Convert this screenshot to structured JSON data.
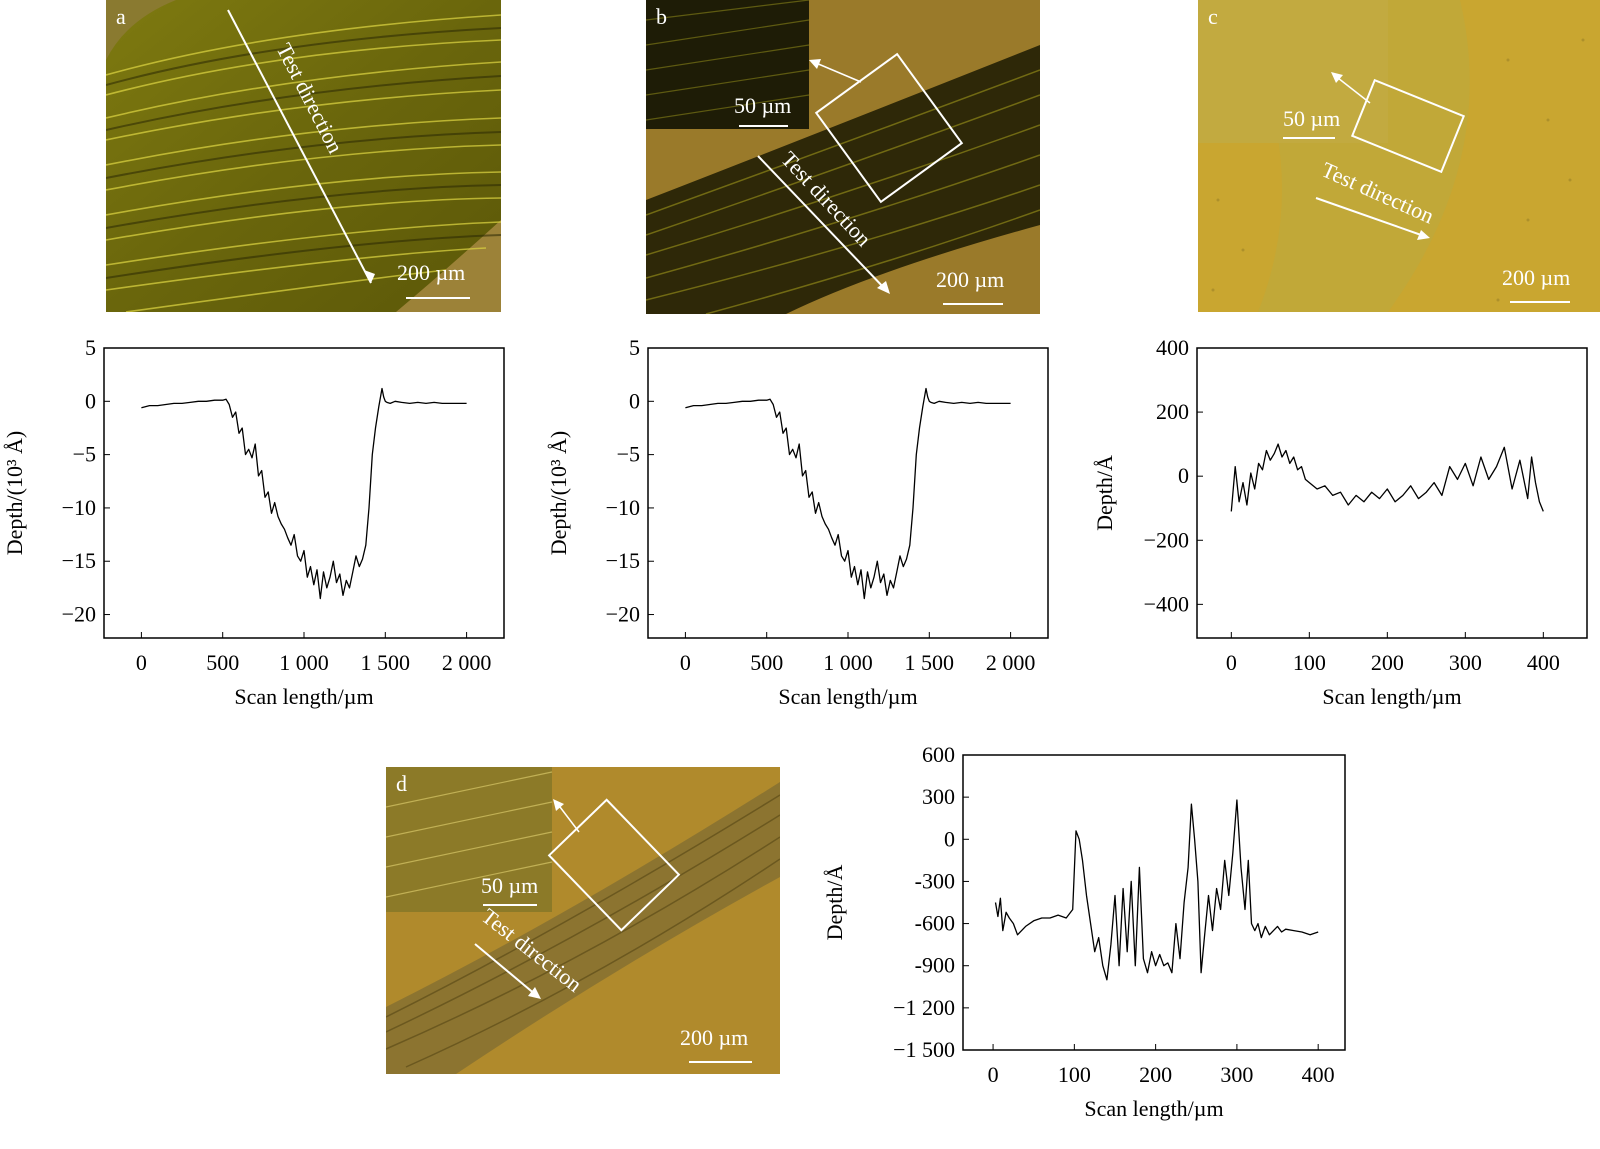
{
  "micrographs": {
    "a": {
      "letter": "a",
      "scale_bar": "200 µm",
      "direction": "Test direction"
    },
    "b": {
      "letter": "b",
      "scale_bar": "200 µm",
      "inset_scale": "50 µm",
      "direction": "Test direction"
    },
    "c": {
      "letter": "c",
      "scale_bar": "200 µm",
      "inset_scale": "50 µm",
      "direction": "Test direction"
    },
    "d": {
      "letter": "d",
      "scale_bar": "200 µm",
      "inset_scale": "50 µm",
      "direction": "Test direction"
    }
  },
  "colors": {
    "wear_dark": "#3a3006",
    "wear_light": "#b9b020",
    "substrate": "#b8952e",
    "substrate_c": "#c9a630",
    "line": "#000000",
    "annotation": "#ffffff"
  },
  "chart_data": [
    {
      "id": "a",
      "type": "line",
      "xlabel": "Scan length/µm",
      "ylabel": "Depth/(10³ Å)",
      "xlim": [
        -230,
        2230
      ],
      "ylim": [
        -22.2,
        5
      ],
      "xticks": [
        0,
        500,
        1000,
        1500,
        2000
      ],
      "xtick_labels": [
        "0",
        "500",
        "1 000",
        "1 500",
        "2 000"
      ],
      "yticks": [
        5,
        0,
        -5,
        -10,
        -15,
        -20
      ],
      "ytick_labels": [
        "5",
        "0",
        "−5",
        "−10",
        "−15",
        "−20"
      ],
      "x": [
        0,
        50,
        100,
        150,
        200,
        250,
        300,
        350,
        400,
        450,
        500,
        520,
        540,
        560,
        580,
        600,
        620,
        640,
        660,
        680,
        700,
        720,
        740,
        760,
        780,
        800,
        820,
        840,
        860,
        880,
        900,
        920,
        940,
        960,
        980,
        1000,
        1020,
        1040,
        1060,
        1080,
        1100,
        1120,
        1140,
        1160,
        1180,
        1200,
        1220,
        1240,
        1260,
        1280,
        1300,
        1320,
        1340,
        1360,
        1380,
        1400,
        1420,
        1440,
        1460,
        1480,
        1490,
        1500,
        1510,
        1530,
        1560,
        1600,
        1650,
        1700,
        1750,
        1800,
        1850,
        1900,
        1950,
        2000
      ],
      "y": [
        -0.6,
        -0.4,
        -0.4,
        -0.3,
        -0.2,
        -0.2,
        -0.1,
        0,
        0,
        0.1,
        0.1,
        0.2,
        -0.3,
        -1.5,
        -1.0,
        -3.0,
        -2.5,
        -5.0,
        -4.5,
        -5.3,
        -4.0,
        -7.0,
        -6.5,
        -9.0,
        -8.5,
        -10.5,
        -9.5,
        -10.8,
        -11.5,
        -12.0,
        -12.8,
        -13.5,
        -12.5,
        -14.5,
        -15.0,
        -14.0,
        -16.5,
        -15.5,
        -17.2,
        -15.8,
        -18.5,
        -16.0,
        -17.5,
        -16.5,
        -15.0,
        -17.0,
        -16.2,
        -18.2,
        -16.8,
        -17.5,
        -16.0,
        -14.5,
        -15.5,
        -14.8,
        -13.5,
        -10.0,
        -5.0,
        -2.5,
        -0.5,
        1.2,
        0.4,
        0,
        -0.1,
        -0.2,
        0,
        -0.1,
        -0.2,
        -0.1,
        -0.2,
        -0.1,
        -0.2,
        -0.2,
        -0.2,
        -0.2
      ]
    },
    {
      "id": "b",
      "type": "line",
      "xlabel": "Scan length/µm",
      "ylabel": "Depth/(10³ Å)",
      "xlim": [
        -230,
        2230
      ],
      "ylim": [
        -22.2,
        5
      ],
      "xticks": [
        0,
        500,
        1000,
        1500,
        2000
      ],
      "xtick_labels": [
        "0",
        "500",
        "1 000",
        "1 500",
        "2 000"
      ],
      "yticks": [
        5,
        0,
        -5,
        -10,
        -15,
        -20
      ],
      "ytick_labels": [
        "5",
        "0",
        "−5",
        "−10",
        "−15",
        "−20"
      ],
      "x": [
        0,
        50,
        100,
        150,
        200,
        250,
        300,
        350,
        400,
        450,
        500,
        520,
        540,
        560,
        580,
        600,
        620,
        640,
        660,
        680,
        700,
        720,
        740,
        760,
        780,
        800,
        820,
        840,
        860,
        880,
        900,
        920,
        940,
        960,
        980,
        1000,
        1020,
        1040,
        1060,
        1080,
        1100,
        1120,
        1140,
        1160,
        1180,
        1200,
        1220,
        1240,
        1260,
        1280,
        1300,
        1320,
        1340,
        1360,
        1380,
        1400,
        1420,
        1440,
        1460,
        1480,
        1490,
        1500,
        1510,
        1530,
        1560,
        1600,
        1650,
        1700,
        1750,
        1800,
        1850,
        1900,
        1950,
        2000
      ],
      "y": [
        -0.6,
        -0.4,
        -0.4,
        -0.3,
        -0.2,
        -0.2,
        -0.1,
        0,
        0,
        0.1,
        0.1,
        0.2,
        -0.3,
        -1.5,
        -1.0,
        -3.0,
        -2.5,
        -5.0,
        -4.5,
        -5.3,
        -4.0,
        -7.0,
        -6.5,
        -9.0,
        -8.5,
        -10.5,
        -9.5,
        -10.8,
        -11.5,
        -12.0,
        -12.8,
        -13.5,
        -12.5,
        -14.5,
        -15.0,
        -14.0,
        -16.5,
        -15.5,
        -17.2,
        -15.8,
        -18.5,
        -16.0,
        -17.5,
        -16.5,
        -15.0,
        -17.0,
        -16.2,
        -18.2,
        -16.8,
        -17.5,
        -16.0,
        -14.5,
        -15.5,
        -14.8,
        -13.5,
        -10.0,
        -5.0,
        -2.5,
        -0.5,
        1.2,
        0.4,
        0,
        -0.1,
        -0.2,
        0,
        -0.1,
        -0.2,
        -0.1,
        -0.2,
        -0.1,
        -0.2,
        -0.2,
        -0.2,
        -0.2
      ]
    },
    {
      "id": "c",
      "type": "line",
      "xlabel": "Scan length/µm",
      "ylabel": "Depth/Å",
      "xlim": [
        -44,
        456
      ],
      "ylim": [
        -505,
        400
      ],
      "xticks": [
        0,
        100,
        200,
        300,
        400
      ],
      "xtick_labels": [
        "0",
        "100",
        "200",
        "300",
        "400"
      ],
      "yticks": [
        400,
        200,
        0,
        -200,
        -400
      ],
      "ytick_labels": [
        "400",
        "200",
        "0",
        "−200",
        "−400"
      ],
      "x": [
        0,
        5,
        10,
        15,
        20,
        25,
        30,
        35,
        40,
        45,
        50,
        55,
        60,
        65,
        70,
        75,
        80,
        85,
        90,
        95,
        100,
        110,
        120,
        130,
        140,
        150,
        160,
        170,
        180,
        190,
        200,
        210,
        220,
        230,
        240,
        250,
        260,
        270,
        280,
        290,
        300,
        310,
        320,
        330,
        340,
        350,
        360,
        370,
        380,
        385,
        390,
        395,
        400
      ],
      "y": [
        -110,
        30,
        -80,
        -20,
        -90,
        10,
        -40,
        40,
        20,
        80,
        50,
        70,
        100,
        60,
        80,
        40,
        60,
        20,
        30,
        -10,
        -20,
        -40,
        -30,
        -60,
        -50,
        -90,
        -60,
        -80,
        -50,
        -70,
        -40,
        -80,
        -60,
        -30,
        -70,
        -50,
        -20,
        -60,
        30,
        -10,
        40,
        -30,
        60,
        -10,
        30,
        90,
        -40,
        50,
        -70,
        60,
        -20,
        -80,
        -110
      ]
    },
    {
      "id": "d",
      "type": "line",
      "xlabel": "Scan length/µm",
      "ylabel": "Depth/Å",
      "xlim": [
        -37,
        433
      ],
      "ylim": [
        -1500,
        600
      ],
      "xticks": [
        0,
        100,
        200,
        300,
        400
      ],
      "xtick_labels": [
        "0",
        "100",
        "200",
        "300",
        "400"
      ],
      "yticks": [
        600,
        300,
        0,
        -300,
        -600,
        -900,
        -1200,
        -1500
      ],
      "ytick_labels": [
        "600",
        "300",
        "0",
        "-300",
        "-600",
        "-900",
        "−1 200",
        "−1 500"
      ],
      "x": [
        3,
        6,
        9,
        12,
        16,
        20,
        25,
        30,
        40,
        50,
        60,
        70,
        80,
        90,
        98,
        102,
        106,
        110,
        115,
        120,
        125,
        130,
        135,
        140,
        145,
        150,
        155,
        160,
        165,
        170,
        175,
        180,
        185,
        190,
        195,
        200,
        205,
        210,
        215,
        220,
        225,
        230,
        235,
        240,
        244,
        248,
        252,
        256,
        260,
        265,
        270,
        275,
        280,
        285,
        290,
        295,
        300,
        305,
        310,
        314,
        318,
        322,
        326,
        330,
        335,
        340,
        345,
        350,
        355,
        360,
        370,
        380,
        390,
        400
      ],
      "y": [
        -450,
        -550,
        -420,
        -650,
        -520,
        -560,
        -600,
        -680,
        -620,
        -580,
        -560,
        -560,
        -540,
        -560,
        -500,
        60,
        0,
        -150,
        -400,
        -600,
        -800,
        -700,
        -900,
        -1000,
        -750,
        -400,
        -900,
        -350,
        -800,
        -300,
        -900,
        -200,
        -850,
        -950,
        -800,
        -900,
        -820,
        -900,
        -880,
        -950,
        -600,
        -850,
        -450,
        -200,
        250,
        0,
        -300,
        -950,
        -700,
        -400,
        -650,
        -350,
        -500,
        -150,
        -400,
        -100,
        280,
        -200,
        -500,
        -150,
        -600,
        -650,
        -600,
        -700,
        -620,
        -680,
        -650,
        -620,
        -660,
        -640,
        -650,
        -660,
        -680,
        -660
      ]
    }
  ]
}
